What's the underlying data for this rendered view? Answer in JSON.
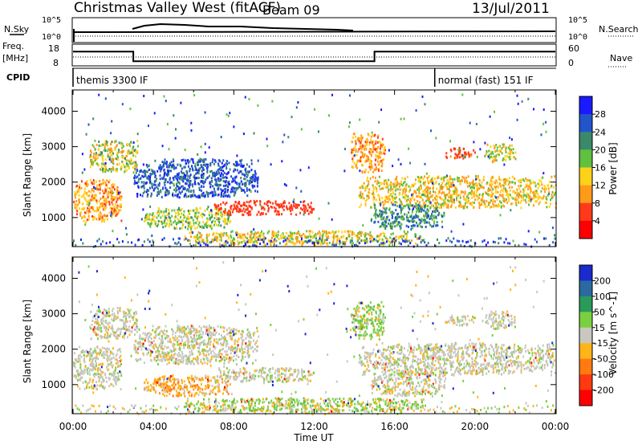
{
  "chart_data": {
    "type": "heatmap",
    "header": {
      "title": "Christmas Valley West (fitACF)",
      "beam": "Beam 09",
      "date": "13/Jul/2011"
    },
    "left_labels": {
      "nsky": "N.Sky",
      "nsky_top": "10^5",
      "nsky_bottom": "10^0",
      "freq": "Freq.",
      "freq_unit": "[MHz]",
      "freq_top": "18",
      "freq_bottom": "8",
      "cpid": "CPID"
    },
    "right_labels": {
      "nsearch": "N.Search",
      "nsearch_top": "10^5",
      "nsearch_bottom": "10^0",
      "nave": "Nave",
      "nave_top": "60",
      "nave_bottom": "0"
    },
    "cpid_segments": [
      {
        "label": "themis 3300 IF",
        "start_hour": 0
      },
      {
        "label": "normal (fast) 151 IF",
        "start_hour": 18
      }
    ],
    "frequency_steps": [
      {
        "start_hour": 0,
        "end_hour": 3,
        "value_mhz": 15
      },
      {
        "start_hour": 3,
        "end_hour": 15,
        "value_mhz": 10
      },
      {
        "start_hour": 15,
        "end_hour": 24,
        "value_mhz": 15
      }
    ],
    "x_axis": {
      "label": "Time UT",
      "range_hours": [
        0,
        24
      ],
      "tick_labels": [
        "00:00",
        "04:00",
        "08:00",
        "12:00",
        "16:00",
        "20:00",
        "00:00"
      ]
    },
    "panels": [
      {
        "name": "power",
        "ylabel": "Slant Range [km]",
        "yrange_km": [
          180,
          4600
        ],
        "y_tick_labels": [
          "1000",
          "2000",
          "3000",
          "4000"
        ],
        "colorbar": {
          "label": "Power [dB]",
          "tick_labels": [
            "4",
            "8",
            "12",
            "16",
            "20",
            "24",
            "28"
          ],
          "colors": [
            "#1a1aff",
            "#2255cc",
            "#3a8a6a",
            "#60c040",
            "#ffd21a",
            "#ff9a1a",
            "#ff3a1a",
            "#ff0000"
          ]
        }
      },
      {
        "name": "velocity",
        "ylabel": "Slant Range [km]",
        "yrange_km": [
          180,
          4600
        ],
        "y_tick_labels": [
          "1000",
          "2000",
          "3000",
          "4000"
        ],
        "colorbar": {
          "label": "Velocity [m s^-1]",
          "tick_labels": [
            "200",
            "100",
            "50",
            "15",
            "-15",
            "-50",
            "-100",
            "-200"
          ],
          "colors": [
            "#1a2acc",
            "#2a6aa0",
            "#2a9a5a",
            "#7ad040",
            "#c8c8c0",
            "#ffb41a",
            "#ff7a10",
            "#ff3a10",
            "#ff0000"
          ]
        }
      }
    ],
    "echo_regions": [
      {
        "t0": 0.0,
        "t1": 2.4,
        "r0": 900,
        "r1": 2100,
        "power": [
          6,
          16
        ],
        "vel": "grey"
      },
      {
        "t0": 0.8,
        "t1": 3.2,
        "r0": 2300,
        "r1": 3200,
        "power": [
          8,
          22
        ],
        "vel": "grey"
      },
      {
        "t0": 3.0,
        "t1": 9.2,
        "r0": 1600,
        "r1": 2700,
        "power": [
          22,
          30
        ],
        "vel": "grey"
      },
      {
        "t0": 3.5,
        "t1": 7.8,
        "r0": 700,
        "r1": 1300,
        "power": [
          12,
          22
        ],
        "vel": "orange"
      },
      {
        "t0": 7.0,
        "t1": 12.0,
        "r0": 1100,
        "r1": 1500,
        "power": [
          4,
          8
        ],
        "vel": "grey"
      },
      {
        "t0": 5.5,
        "t1": 17.5,
        "r0": 250,
        "r1": 650,
        "power": [
          8,
          20
        ],
        "vel": "green"
      },
      {
        "t0": 14.2,
        "t1": 24.0,
        "r0": 1300,
        "r1": 2200,
        "power": [
          8,
          18
        ],
        "vel": "grey"
      },
      {
        "t0": 14.8,
        "t1": 18.5,
        "r0": 700,
        "r1": 1400,
        "power": [
          16,
          28
        ],
        "vel": "grey"
      },
      {
        "t0": 13.8,
        "t1": 15.5,
        "r0": 2300,
        "r1": 3400,
        "power": [
          6,
          14
        ],
        "vel": "green"
      },
      {
        "t0": 20.5,
        "t1": 22.0,
        "r0": 2600,
        "r1": 3100,
        "power": [
          8,
          20
        ],
        "vel": "grey"
      },
      {
        "t0": 18.5,
        "t1": 20.0,
        "r0": 2700,
        "r1": 3000,
        "power": [
          4,
          10
        ],
        "vel": "grey"
      }
    ]
  }
}
